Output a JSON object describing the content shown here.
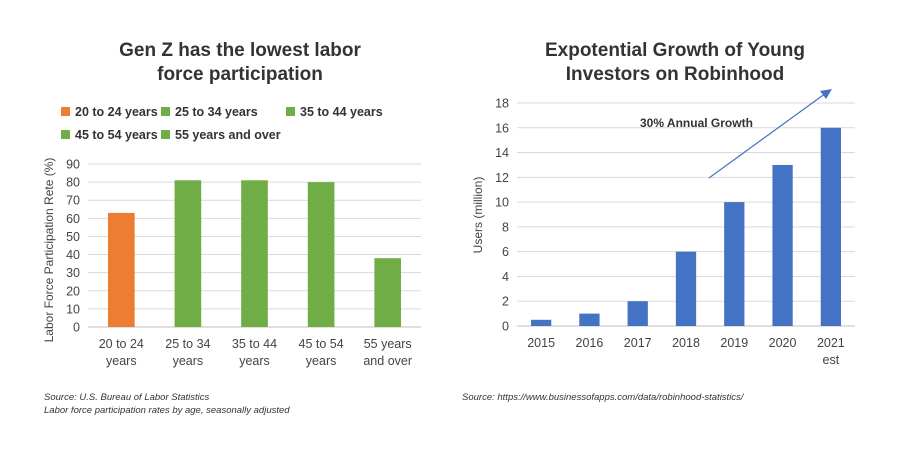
{
  "chart_data": [
    {
      "type": "bar",
      "title": [
        "Gen Z has the lowest labor",
        "force participation"
      ],
      "ylabel": "Labor Force Participation Rete (%)",
      "xlabel": "",
      "categories": [
        [
          "20 to 24",
          "years"
        ],
        [
          "25 to 34",
          "years"
        ],
        [
          "35 to 44",
          "years"
        ],
        [
          "45 to 54",
          "years"
        ],
        [
          "55 years",
          "and over"
        ]
      ],
      "values": [
        63,
        81,
        81,
        80,
        38
      ],
      "bar_colors": [
        "#ED7D31",
        "#70AD47",
        "#70AD47",
        "#70AD47",
        "#70AD47"
      ],
      "legend": [
        {
          "label": "20 to 24 years",
          "color": "#ED7D31"
        },
        {
          "label": "25 to 34 years",
          "color": "#70AD47"
        },
        {
          "label": "35 to 44 years",
          "color": "#70AD47"
        },
        {
          "label": "45 to 54 years",
          "color": "#70AD47"
        },
        {
          "label": "55 years and over",
          "color": "#70AD47"
        }
      ],
      "legend_position": "top",
      "ylim": [
        0,
        90
      ],
      "yticks": [
        0,
        10,
        20,
        30,
        40,
        50,
        60,
        70,
        80,
        90
      ],
      "grid": true,
      "source": [
        "Source: U.S. Bureau of Labor Statistics",
        "Labor force participation rates by age, seasonally adjusted"
      ]
    },
    {
      "type": "bar",
      "title": [
        "Expotential Growth of Young",
        "Investors on Robinhood"
      ],
      "ylabel": "Users (million)",
      "xlabel": "",
      "categories": [
        [
          "2015"
        ],
        [
          "2016"
        ],
        [
          "2017"
        ],
        [
          "2018"
        ],
        [
          "2019"
        ],
        [
          "2020"
        ],
        [
          "2021",
          "est"
        ]
      ],
      "values": [
        0.5,
        1,
        2,
        6,
        10,
        13,
        16
      ],
      "bar_colors": [
        "#4472C4",
        "#4472C4",
        "#4472C4",
        "#4472C4",
        "#4472C4",
        "#4472C4",
        "#4472C4"
      ],
      "ylim": [
        0,
        18
      ],
      "yticks": [
        0,
        2,
        4,
        6,
        8,
        10,
        12,
        14,
        16,
        18
      ],
      "grid": true,
      "annotation": {
        "text": "30% Annual Growth",
        "arrow_color": "#4472C4"
      },
      "source": [
        "Source: https://www.businessofapps.com/data/robinhood-statistics/"
      ]
    }
  ]
}
